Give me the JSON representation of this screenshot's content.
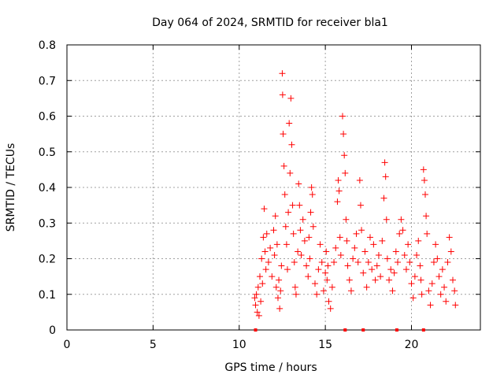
{
  "chart_data": {
    "type": "scatter",
    "title": "Day 064 of 2024, SRMTID for receiver bla1",
    "xlabel": "GPS time / hours",
    "ylabel": "SRMTID / TECUs",
    "xlim": [
      0,
      24
    ],
    "ylim": [
      0,
      0.8
    ],
    "x_ticks": [
      0,
      5,
      10,
      15,
      20
    ],
    "x_tick_labels": [
      "0",
      "5",
      "10",
      "15",
      "20"
    ],
    "y_ticks": [
      0,
      0.1,
      0.2,
      0.3,
      0.4,
      0.5,
      0.6,
      0.7,
      0.8
    ],
    "y_tick_labels": [
      "0",
      "0.1",
      "0.2",
      "0.3",
      "0.4",
      "0.5",
      "0.6",
      "0.7",
      "0.8"
    ],
    "grid": true,
    "marker": "+",
    "series_color": "#ff0000",
    "series": [
      {
        "name": "SRMTID",
        "points": [
          [
            10.9,
            0.09
          ],
          [
            10.95,
            0.07
          ],
          [
            11.0,
            0.1
          ],
          [
            11.05,
            0.05
          ],
          [
            11.1,
            0.12
          ],
          [
            11.15,
            0.04
          ],
          [
            11.2,
            0.15
          ],
          [
            11.25,
            0.08
          ],
          [
            11.3,
            0.2
          ],
          [
            11.35,
            0.13
          ],
          [
            11.4,
            0.26
          ],
          [
            11.45,
            0.34
          ],
          [
            11.5,
            0.22
          ],
          [
            11.55,
            0.17
          ],
          [
            11.6,
            0.27
          ],
          [
            11.7,
            0.19
          ],
          [
            11.8,
            0.23
          ],
          [
            11.9,
            0.15
          ],
          [
            12.0,
            0.28
          ],
          [
            12.05,
            0.21
          ],
          [
            12.1,
            0.32
          ],
          [
            12.15,
            0.12
          ],
          [
            12.2,
            0.24
          ],
          [
            12.25,
            0.09
          ],
          [
            12.3,
            0.14
          ],
          [
            12.35,
            0.06
          ],
          [
            12.4,
            0.11
          ],
          [
            12.45,
            0.18
          ],
          [
            12.5,
            0.72
          ],
          [
            12.52,
            0.66
          ],
          [
            12.55,
            0.55
          ],
          [
            12.6,
            0.46
          ],
          [
            12.65,
            0.38
          ],
          [
            12.7,
            0.29
          ],
          [
            12.75,
            0.24
          ],
          [
            12.8,
            0.17
          ],
          [
            12.85,
            0.33
          ],
          [
            12.9,
            0.58
          ],
          [
            12.95,
            0.44
          ],
          [
            13.0,
            0.65
          ],
          [
            13.05,
            0.52
          ],
          [
            13.1,
            0.35
          ],
          [
            13.15,
            0.27
          ],
          [
            13.2,
            0.19
          ],
          [
            13.25,
            0.12
          ],
          [
            13.3,
            0.1
          ],
          [
            13.4,
            0.22
          ],
          [
            13.45,
            0.41
          ],
          [
            13.5,
            0.35
          ],
          [
            13.55,
            0.28
          ],
          [
            13.6,
            0.21
          ],
          [
            13.7,
            0.31
          ],
          [
            13.8,
            0.25
          ],
          [
            13.9,
            0.18
          ],
          [
            14.0,
            0.15
          ],
          [
            14.05,
            0.26
          ],
          [
            14.1,
            0.2
          ],
          [
            14.15,
            0.33
          ],
          [
            14.2,
            0.4
          ],
          [
            14.25,
            0.38
          ],
          [
            14.3,
            0.29
          ],
          [
            14.4,
            0.13
          ],
          [
            14.5,
            0.1
          ],
          [
            14.6,
            0.17
          ],
          [
            14.7,
            0.24
          ],
          [
            14.8,
            0.19
          ],
          [
            14.9,
            0.11
          ],
          [
            15.0,
            0.16
          ],
          [
            15.05,
            0.22
          ],
          [
            15.1,
            0.14
          ],
          [
            15.15,
            0.18
          ],
          [
            15.2,
            0.08
          ],
          [
            15.3,
            0.06
          ],
          [
            15.4,
            0.12
          ],
          [
            15.5,
            0.19
          ],
          [
            15.6,
            0.23
          ],
          [
            15.7,
            0.36
          ],
          [
            15.75,
            0.42
          ],
          [
            15.8,
            0.39
          ],
          [
            15.85,
            0.26
          ],
          [
            15.9,
            0.21
          ],
          [
            16.0,
            0.6
          ],
          [
            16.05,
            0.55
          ],
          [
            16.1,
            0.49
          ],
          [
            16.15,
            0.44
          ],
          [
            16.2,
            0.31
          ],
          [
            16.25,
            0.25
          ],
          [
            16.3,
            0.18
          ],
          [
            16.4,
            0.14
          ],
          [
            16.5,
            0.11
          ],
          [
            16.6,
            0.2
          ],
          [
            16.7,
            0.23
          ],
          [
            16.8,
            0.27
          ],
          [
            16.9,
            0.19
          ],
          [
            17.0,
            0.42
          ],
          [
            17.05,
            0.35
          ],
          [
            17.1,
            0.28
          ],
          [
            17.2,
            0.16
          ],
          [
            17.3,
            0.22
          ],
          [
            17.4,
            0.12
          ],
          [
            17.5,
            0.19
          ],
          [
            17.6,
            0.26
          ],
          [
            17.7,
            0.17
          ],
          [
            17.8,
            0.24
          ],
          [
            17.9,
            0.14
          ],
          [
            18.0,
            0.18
          ],
          [
            18.1,
            0.21
          ],
          [
            18.2,
            0.15
          ],
          [
            18.3,
            0.25
          ],
          [
            18.4,
            0.37
          ],
          [
            18.45,
            0.47
          ],
          [
            18.5,
            0.43
          ],
          [
            18.55,
            0.31
          ],
          [
            18.6,
            0.2
          ],
          [
            18.7,
            0.14
          ],
          [
            18.8,
            0.17
          ],
          [
            18.9,
            0.11
          ],
          [
            19.0,
            0.16
          ],
          [
            19.1,
            0.22
          ],
          [
            19.2,
            0.19
          ],
          [
            19.3,
            0.27
          ],
          [
            19.4,
            0.31
          ],
          [
            19.5,
            0.28
          ],
          [
            19.6,
            0.21
          ],
          [
            19.7,
            0.17
          ],
          [
            19.8,
            0.24
          ],
          [
            19.9,
            0.19
          ],
          [
            20.0,
            0.13
          ],
          [
            20.1,
            0.09
          ],
          [
            20.2,
            0.15
          ],
          [
            20.3,
            0.21
          ],
          [
            20.4,
            0.25
          ],
          [
            20.5,
            0.18
          ],
          [
            20.55,
            0.14
          ],
          [
            20.6,
            0.1
          ],
          [
            20.7,
            0.45
          ],
          [
            20.75,
            0.42
          ],
          [
            20.8,
            0.38
          ],
          [
            20.85,
            0.32
          ],
          [
            20.9,
            0.27
          ],
          [
            21.0,
            0.11
          ],
          [
            21.1,
            0.07
          ],
          [
            21.2,
            0.13
          ],
          [
            21.3,
            0.19
          ],
          [
            21.4,
            0.24
          ],
          [
            21.5,
            0.2
          ],
          [
            21.6,
            0.15
          ],
          [
            21.7,
            0.1
          ],
          [
            21.8,
            0.17
          ],
          [
            21.9,
            0.12
          ],
          [
            22.0,
            0.08
          ],
          [
            22.1,
            0.19
          ],
          [
            22.2,
            0.26
          ],
          [
            22.3,
            0.22
          ],
          [
            22.4,
            0.14
          ],
          [
            22.5,
            0.11
          ],
          [
            22.55,
            0.07
          ]
        ]
      }
    ],
    "bottom_markers_x": [
      10.95,
      16.15,
      17.2,
      19.15,
      20.7
    ]
  }
}
